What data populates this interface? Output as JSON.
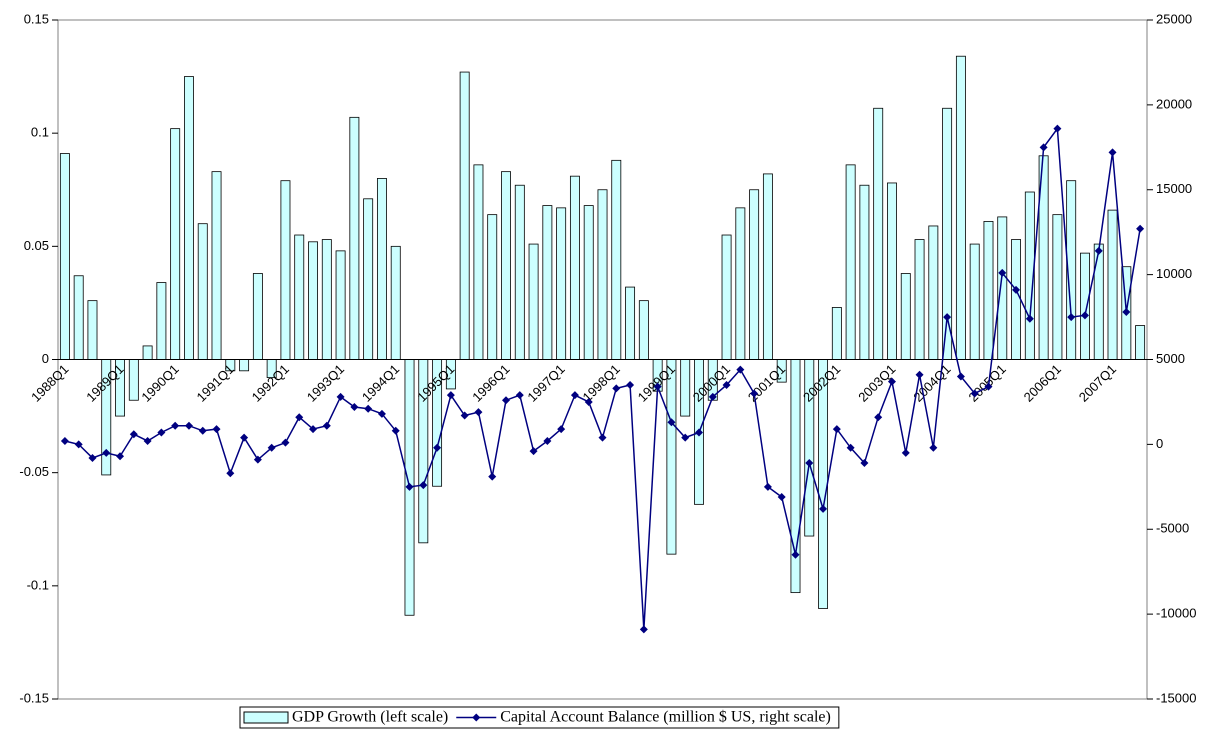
{
  "chart_data": {
    "type": "bar",
    "categories": [
      "1988Q1",
      null,
      null,
      null,
      "1989Q1",
      null,
      null,
      null,
      "1990Q1",
      null,
      null,
      null,
      "1991Q1",
      null,
      null,
      null,
      "1992Q1",
      null,
      null,
      null,
      "1993Q1",
      null,
      null,
      null,
      "1994Q1",
      null,
      null,
      null,
      "1995Q1",
      null,
      null,
      null,
      "1996Q1",
      null,
      null,
      null,
      "1997Q1",
      null,
      null,
      null,
      "1998Q1",
      null,
      null,
      null,
      "1999Q1",
      null,
      null,
      null,
      "2000Q1",
      null,
      null,
      null,
      "2001Q1",
      null,
      null,
      null,
      "2002Q1",
      null,
      null,
      null,
      "2003Q1",
      null,
      null,
      null,
      "2004Q1",
      null,
      null,
      null,
      "2005Q1",
      null,
      null,
      null,
      "2006Q1",
      null,
      null,
      null,
      "2007Q1",
      null,
      null
    ],
    "series": [
      {
        "name": "GDP Growth (left scale)",
        "type": "bar",
        "color": "#ccffff",
        "values": [
          0.091,
          0.037,
          0.026,
          -0.051,
          -0.025,
          -0.018,
          0.006,
          0.034,
          0.102,
          0.125,
          0.06,
          0.083,
          -0.005,
          -0.005,
          0.038,
          -0.008,
          0.079,
          0.055,
          0.052,
          0.053,
          0.048,
          0.107,
          0.071,
          0.08,
          0.05,
          -0.113,
          -0.081,
          -0.056,
          -0.013,
          0.127,
          0.086,
          0.064,
          0.083,
          0.077,
          0.051,
          0.068,
          0.067,
          0.081,
          0.068,
          0.075,
          0.088,
          0.032,
          0.026,
          -0.014,
          -0.086,
          -0.025,
          -0.064,
          -0.018,
          0.055,
          0.067,
          0.075,
          0.082,
          -0.01,
          -0.103,
          -0.078,
          -0.11,
          0.023,
          0.086,
          0.077,
          0.111,
          0.078,
          0.038,
          0.053,
          0.059,
          0.111,
          0.134,
          0.051,
          0.061,
          0.063,
          0.053,
          0.074,
          0.09,
          0.064,
          0.079,
          0.047,
          0.051,
          0.066,
          0.041,
          0.015
        ]
      },
      {
        "name": "Capital Account Balance (million $ US, right scale)",
        "type": "line",
        "axis": "y2",
        "color": "#000080",
        "values": [
          200,
          0,
          -800,
          -500,
          -700,
          600,
          200,
          700,
          1100,
          1100,
          800,
          900,
          -1700,
          400,
          -900,
          -200,
          100,
          1600,
          900,
          1100,
          2800,
          2200,
          2100,
          1800,
          800,
          -2500,
          -2400,
          -200,
          2900,
          1700,
          1900,
          -1900,
          2600,
          2900,
          -400,
          200,
          900,
          2900,
          2500,
          400,
          3300,
          3500,
          -10900,
          3400,
          1300,
          400,
          700,
          2800,
          3500,
          4400,
          3000,
          -2500,
          -3100,
          -6500,
          -1100,
          -3800,
          900,
          -200,
          -1100,
          1600,
          3700,
          -500,
          4100,
          -200,
          7500,
          4000,
          3000,
          3400,
          10100,
          9100,
          7400,
          17500,
          18600,
          7500,
          7600,
          11400,
          17200,
          7800,
          12700
        ]
      }
    ],
    "ylim": [
      -0.15,
      0.15
    ],
    "yticks": [
      -0.15,
      -0.1,
      -0.05,
      0,
      0.05,
      0.1,
      0.15
    ],
    "y2lim": [
      -15000,
      25000
    ],
    "y2ticks": [
      -15000,
      -10000,
      -5000,
      0,
      5000,
      10000,
      15000,
      20000,
      25000
    ],
    "grid": false,
    "legend": "bottom"
  }
}
